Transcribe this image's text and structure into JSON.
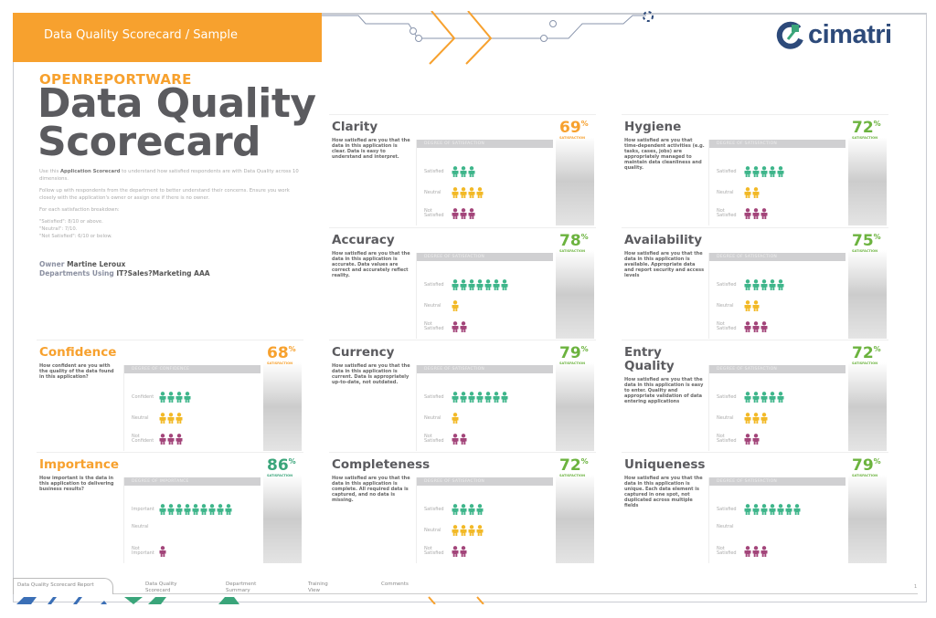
{
  "header": {
    "title": "Data Quality Scorecard / Sample"
  },
  "logo": {
    "text": "cimatri"
  },
  "brand": "OPENREPORTWARE",
  "title_line1": "Data Quality",
  "title_line2": "Scorecard",
  "intro": {
    "p1_pre": "Use this ",
    "p1_bold": "Application Scorecard",
    "p1_post": " to understand how satisfied respondents are with Data Quality across 10 dimensions.",
    "p2": "Follow up with respondents from the department to better understand their concerns. Ensure you work closely with the application's owner or assign one if there is no owner.",
    "p3": "For each satisfaction breakdown:",
    "l1": "\"Satisfied\": 8/10 or above.",
    "l2": "\"Neutral\": 7/10.",
    "l3": "\"Not Satisfied\": 6/10 or below."
  },
  "owner": {
    "label": "Owner",
    "value": "Martine Leroux",
    "dept_label": "Departments Using",
    "dept_value": "IT?Sales?Marketing AAA"
  },
  "colors": {
    "orange": "#f7a12e",
    "green": "#6cb33f",
    "teal": "#3aa57a",
    "positive": "#3fb68b",
    "neutral": "#f2b927",
    "negative": "#a3457a"
  },
  "cards": [
    {
      "title": "Clarity",
      "desc": "How satisfied are you that the data in this application is clear. Data is easy to understand and interpret.",
      "header": "DEGREE OF SATISFACTION",
      "labels": [
        "Satisfied",
        "Neutral",
        "Not Satisfied"
      ],
      "counts": [
        3,
        4,
        3
      ],
      "pct": "69",
      "pct_color": "#f7a12e",
      "sat_label": "SATISFACTION"
    },
    {
      "title": "Accuracy",
      "desc": "How satisfied are you that the data in this application is accurate. Data values are correct and accurately reflect reality.",
      "header": "DEGREE OF SATISFACTION",
      "labels": [
        "Satisfied",
        "Neutral",
        "Not Satisfied"
      ],
      "counts": [
        7,
        1,
        2
      ],
      "pct": "78",
      "pct_color": "#6cb33f",
      "sat_label": "SATISFACTION"
    },
    {
      "title": "Currency",
      "desc": "How satisfied are you that the data in this application is current. Data is appropriately up-to-date, not outdated.",
      "header": "DEGREE OF SATISFACTION",
      "labels": [
        "Satisfied",
        "Neutral",
        "Not Satisfied"
      ],
      "counts": [
        7,
        1,
        2
      ],
      "pct": "79",
      "pct_color": "#6cb33f",
      "sat_label": "SATISFACTION"
    },
    {
      "title": "Completeness",
      "desc": "How satisfied are you that the data in this application is complete. All required data is captured, and no data is missing.",
      "header": "DEGREE OF SATISFACTION",
      "labels": [
        "Satisfied",
        "Neutral",
        "Not Satisfied"
      ],
      "counts": [
        4,
        4,
        2
      ],
      "pct": "72",
      "pct_color": "#6cb33f",
      "sat_label": "SATISFACTION"
    },
    {
      "title": "Hygiene",
      "desc": "How satisfied are you that time-dependent activities (e.g. tasks, cases, jobs) are appropriately managed to maintain data cleanliness and quality.",
      "header": "DEGREE OF SATISFACTION",
      "labels": [
        "Satisfied",
        "Neutral",
        "Not Satisfied"
      ],
      "counts": [
        5,
        2,
        3
      ],
      "pct": "72",
      "pct_color": "#6cb33f",
      "sat_label": "SATISFACTION"
    },
    {
      "title": "Availability",
      "desc": "How satisfied are you that the data in this application is available. Appropriate data and report security and access levels",
      "header": "DEGREE OF SATISFACTION",
      "labels": [
        "Satisfied",
        "Neutral",
        "Not Satisfied"
      ],
      "counts": [
        5,
        2,
        3
      ],
      "pct": "75",
      "pct_color": "#6cb33f",
      "sat_label": "SATISFACTION"
    },
    {
      "title": "Entry Quality",
      "desc": "How satisfied are you that the data in this application is easy to enter. Quality and appropriate validation of data entering applications",
      "header": "DEGREE OF SATISFACTION",
      "labels": [
        "Satisfied",
        "Neutral",
        "Not Satisfied"
      ],
      "counts": [
        5,
        3,
        2
      ],
      "pct": "72",
      "pct_color": "#6cb33f",
      "sat_label": "SATISFACTION"
    },
    {
      "title": "Uniqueness",
      "desc": "How satisfied are you that the data in this application is unique. Each data element is captured in one spot, not duplicated across multiple fields",
      "header": "DEGREE OF SATISFACTION",
      "labels": [
        "Satisfied",
        "Neutral",
        "Not Satisfied"
      ],
      "counts": [
        7,
        0,
        3
      ],
      "pct": "79",
      "pct_color": "#6cb33f",
      "sat_label": "SATISFACTION"
    },
    {
      "title": "Confidence",
      "desc": "How confident are you with the quality of the data found in this application?",
      "header": "DEGREE OF CONFIDENCE",
      "labels": [
        "Confident",
        "Neutral",
        "Not Confident"
      ],
      "counts": [
        4,
        3,
        3
      ],
      "pct": "68",
      "pct_color": "#f7a12e",
      "sat_label": "SATISFACTION",
      "title_color": "#f7a12e"
    },
    {
      "title": "Importance",
      "desc": "How important is the data in this application to delivering business results?",
      "header": "DEGREE OF IMPORTANCE",
      "labels": [
        "Important",
        "Neutral",
        "Not Important"
      ],
      "counts": [
        9,
        0,
        1
      ],
      "pct": "86",
      "pct_color": "#3aa57a",
      "sat_label": "SATISFACTION",
      "title_color": "#f7a12e"
    }
  ],
  "tabs": [
    {
      "label": "Data Quality Scorecard Report",
      "active": true
    },
    {
      "label": "Data Quality Scorecard"
    },
    {
      "label": "Department Summary"
    },
    {
      "label": "Training View"
    },
    {
      "label": "Comments"
    }
  ],
  "page_number": "1"
}
